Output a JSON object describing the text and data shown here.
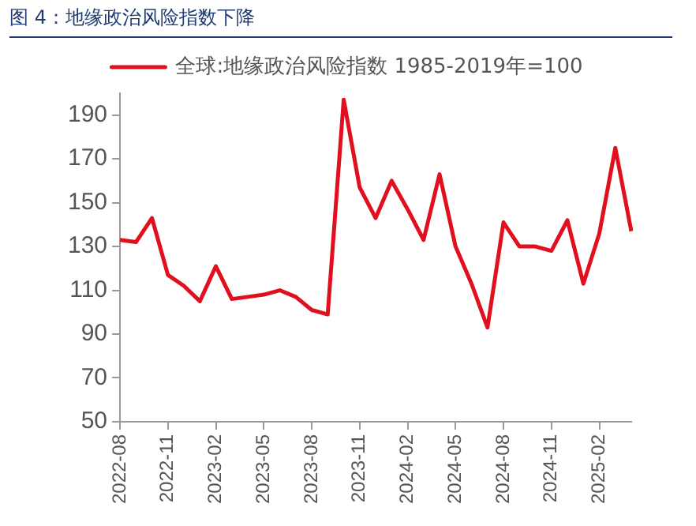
{
  "chart_data": {
    "type": "line",
    "title": "图 4：地缘政治风险指数下降",
    "categories": [
      "2022-08",
      null,
      null,
      "2022-11",
      null,
      null,
      "2023-02",
      null,
      null,
      "2023-05",
      null,
      null,
      "2023-08",
      null,
      null,
      "2023-11",
      null,
      null,
      "2024-02",
      null,
      null,
      "2024-05",
      null,
      null,
      "2024-08",
      null,
      null,
      "2024-11",
      null,
      null,
      "2025-02",
      null,
      null
    ],
    "series": [
      {
        "name": "全球:地缘政治风险指数 1985-2019年=100",
        "color": "#e0101e",
        "values": [
          133,
          132,
          143,
          117,
          112,
          105,
          121,
          106,
          107,
          108,
          110,
          107,
          101,
          99,
          197,
          157,
          143,
          160,
          147,
          133,
          163,
          130,
          113,
          93,
          141,
          130,
          130,
          128,
          142,
          113,
          136,
          175,
          137
        ]
      }
    ],
    "ylim": [
      50,
      200
    ],
    "yticks": [
      50,
      70,
      90,
      110,
      130,
      150,
      170,
      190
    ],
    "grid": false,
    "legend": "top",
    "marker": "none",
    "line_style": "solid"
  }
}
